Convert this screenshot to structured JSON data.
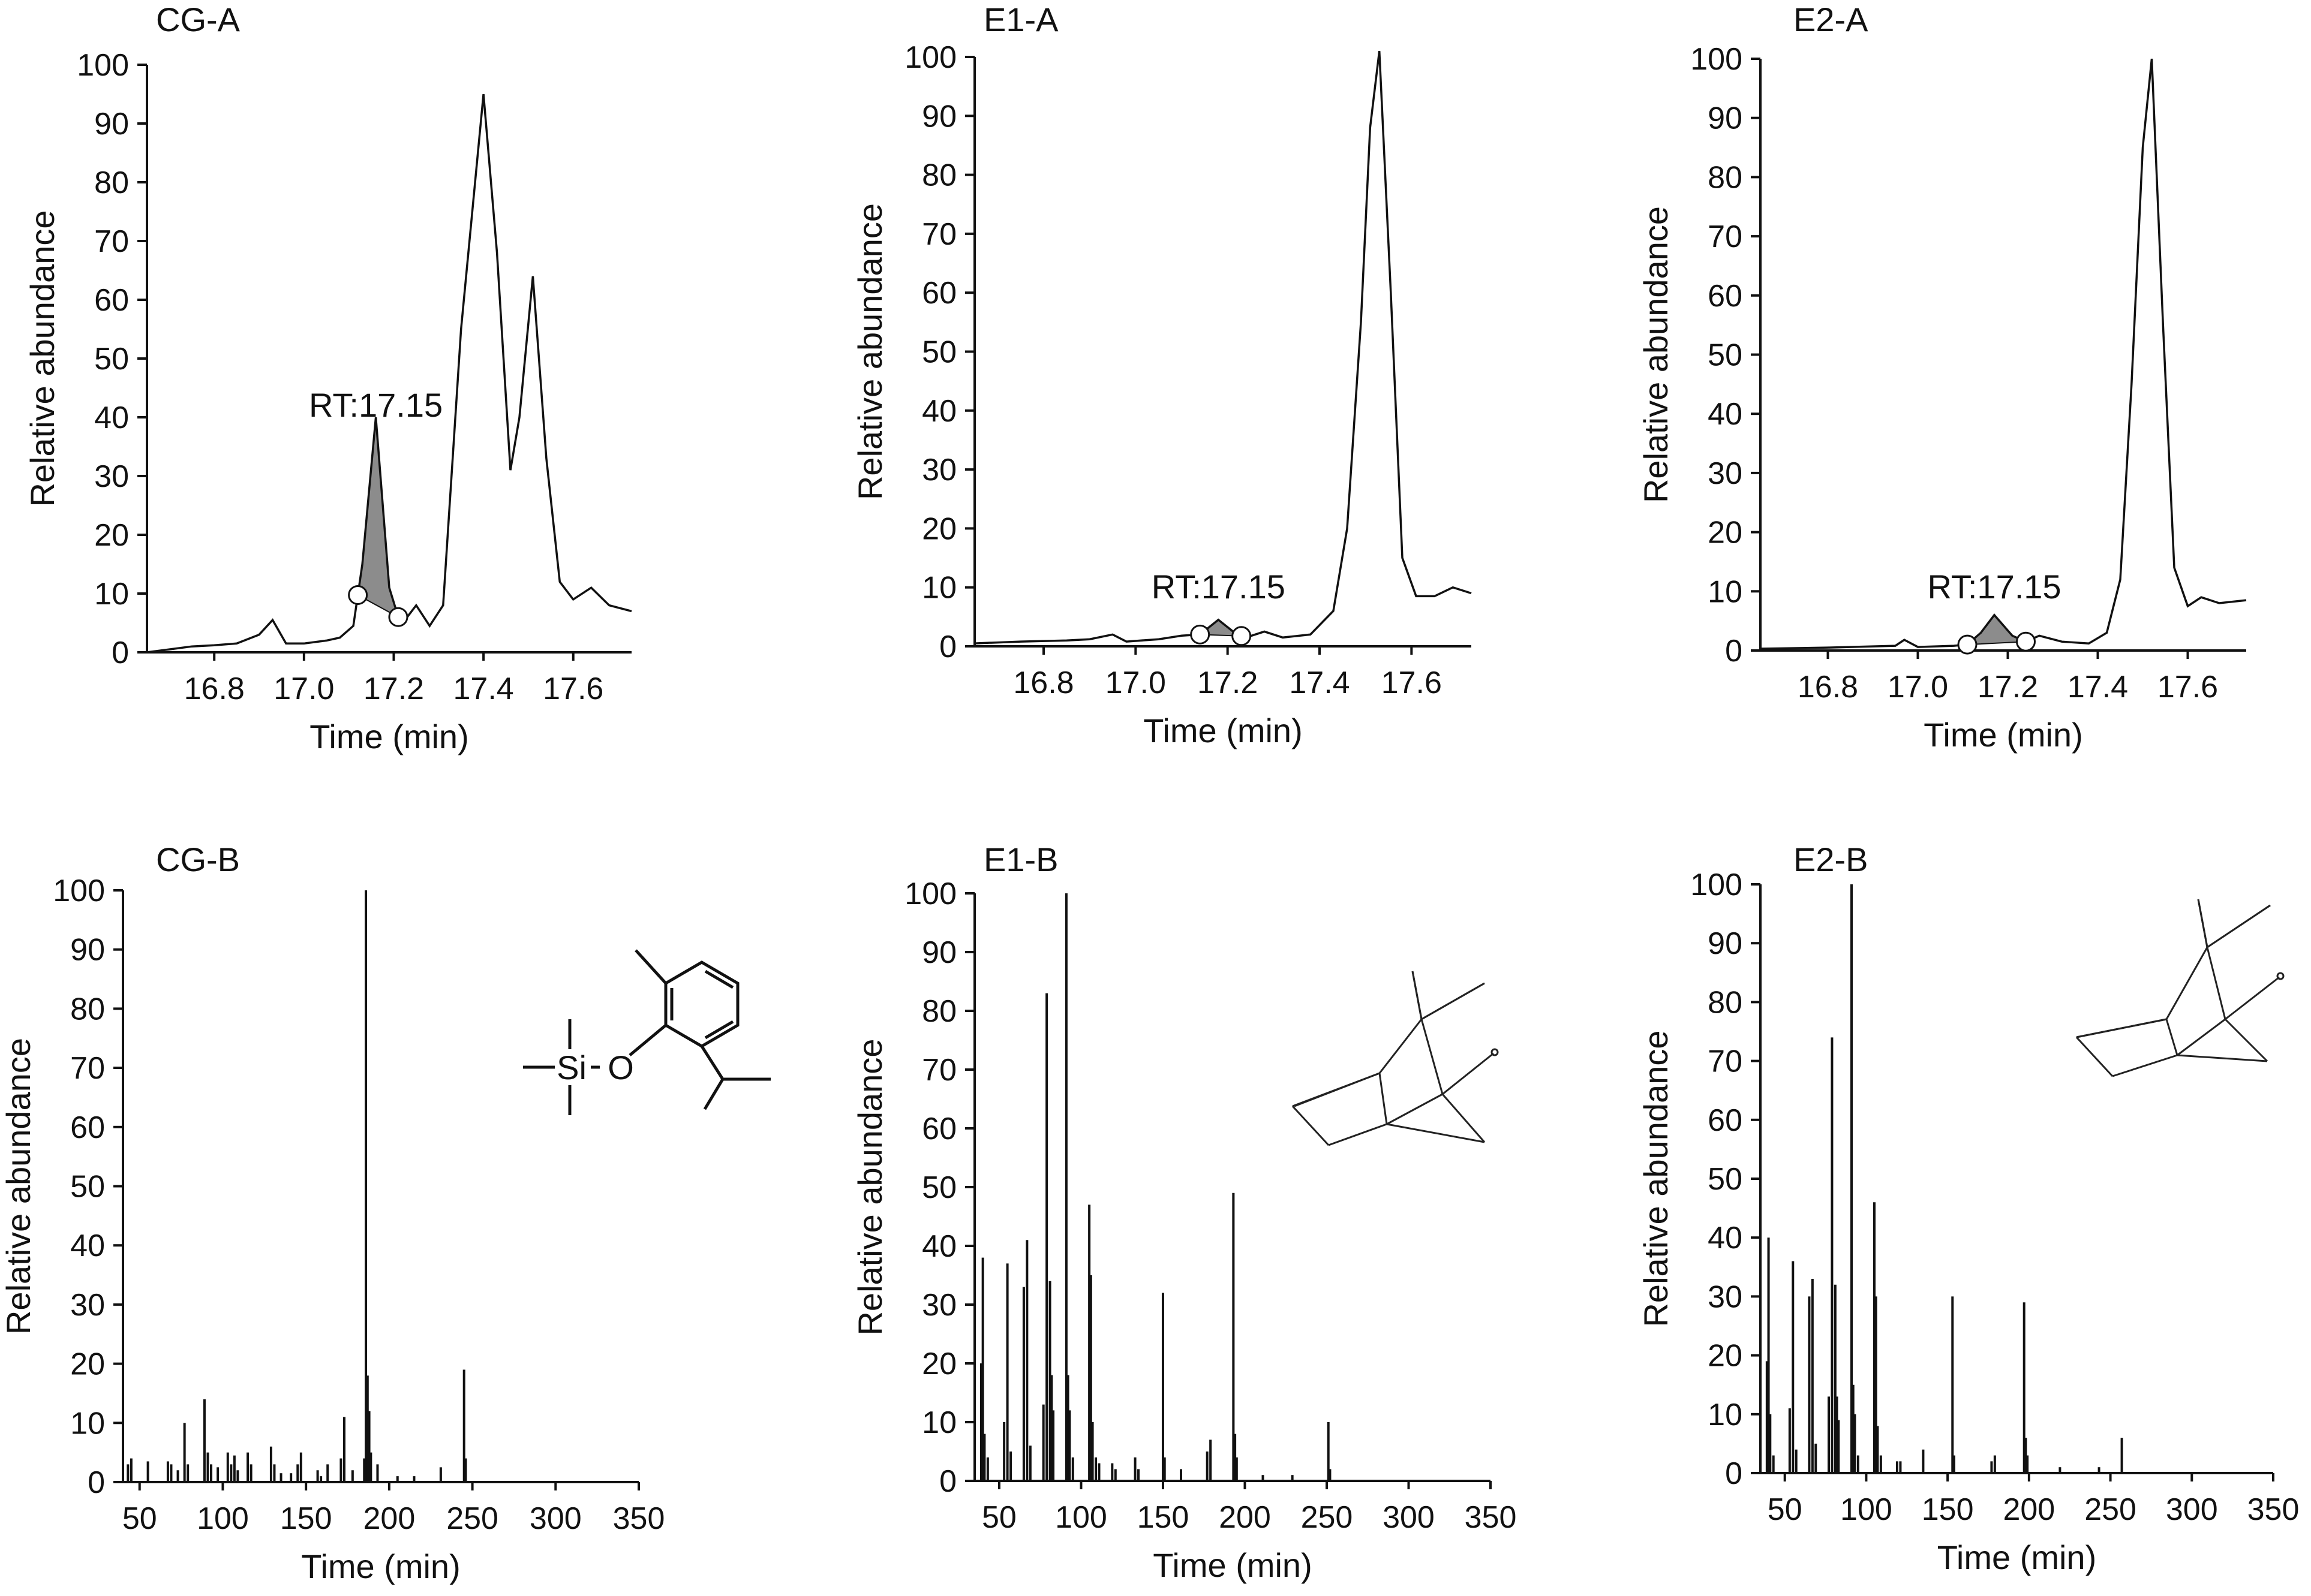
{
  "chart_data": [
    {
      "id": "CG-A",
      "type": "line",
      "title": "CG-A",
      "xlabel": "Time (min)",
      "ylabel": "Relative abundance",
      "xlim": [
        16.65,
        17.73
      ],
      "ylim": [
        0,
        100
      ],
      "xticks": [
        "16.8",
        "17.0",
        "17.2",
        "17.4",
        "17.6"
      ],
      "yticks": [
        "0",
        "10",
        "20",
        "30",
        "40",
        "50",
        "60",
        "70",
        "80",
        "90",
        "100"
      ],
      "annotation": {
        "text": "RT:17.15",
        "x": 17.16
      },
      "shaded_peak": {
        "x_start": 17.12,
        "x_end": 17.21,
        "apex": 17.16
      },
      "x": [
        16.65,
        16.7,
        16.75,
        16.8,
        16.85,
        16.9,
        16.93,
        16.96,
        17.0,
        17.05,
        17.08,
        17.11,
        17.13,
        17.16,
        17.19,
        17.21,
        17.23,
        17.25,
        17.28,
        17.31,
        17.35,
        17.4,
        17.43,
        17.46,
        17.48,
        17.51,
        17.54,
        17.57,
        17.6,
        17.64,
        17.68,
        17.73
      ],
      "y": [
        0,
        0.5,
        1,
        1.2,
        1.5,
        3,
        5.5,
        1.5,
        1.5,
        2,
        2.5,
        4.5,
        15,
        40,
        11,
        6,
        6,
        8,
        4.5,
        8,
        55,
        95,
        68,
        31,
        40,
        64,
        33,
        12,
        9,
        11,
        8,
        7
      ]
    },
    {
      "id": "E1-A",
      "type": "line",
      "title": "E1-A",
      "xlabel": "Time (min)",
      "ylabel": "Relative abundance",
      "xlim": [
        16.65,
        17.73
      ],
      "ylim": [
        0,
        100
      ],
      "xticks": [
        "16.8",
        "17.0",
        "17.2",
        "17.4",
        "17.6"
      ],
      "yticks": [
        "0",
        "10",
        "20",
        "30",
        "40",
        "50",
        "60",
        "70",
        "80",
        "90",
        "100"
      ],
      "annotation": {
        "text": "RT:17.15",
        "x": 17.18
      },
      "shaded_peak": {
        "x_start": 17.14,
        "x_end": 17.23,
        "apex": 17.18
      },
      "x": [
        16.65,
        16.75,
        16.85,
        16.9,
        16.95,
        16.98,
        17.05,
        17.1,
        17.14,
        17.18,
        17.22,
        17.24,
        17.28,
        17.32,
        17.38,
        17.43,
        17.46,
        17.49,
        17.51,
        17.53,
        17.555,
        17.58,
        17.61,
        17.65,
        17.69,
        17.73
      ],
      "y": [
        0.5,
        0.8,
        1,
        1.2,
        2,
        0.8,
        1.2,
        1.8,
        2,
        4.5,
        2,
        1.5,
        2.5,
        1.5,
        2,
        6,
        20,
        55,
        88,
        101,
        60,
        15,
        8.5,
        8.5,
        10,
        9
      ]
    },
    {
      "id": "E2-A",
      "type": "line",
      "title": "E2-A",
      "xlabel": "Time (min)",
      "ylabel": "Relative abundance",
      "xlim": [
        16.65,
        17.73
      ],
      "ylim": [
        0,
        100
      ],
      "xticks": [
        "16.8",
        "17.0",
        "17.2",
        "17.4",
        "17.6"
      ],
      "yticks": [
        "0",
        "10",
        "20",
        "30",
        "40",
        "50",
        "60",
        "70",
        "80",
        "90",
        "100"
      ],
      "annotation": {
        "text": "RT:17.15",
        "x": 17.17
      },
      "shaded_peak": {
        "x_start": 17.11,
        "x_end": 17.24,
        "apex": 17.17
      },
      "x": [
        16.65,
        16.8,
        16.95,
        16.97,
        17.0,
        17.08,
        17.11,
        17.14,
        17.17,
        17.21,
        17.24,
        17.27,
        17.32,
        17.38,
        17.42,
        17.45,
        17.475,
        17.5,
        17.52,
        17.545,
        17.57,
        17.6,
        17.63,
        17.67,
        17.73
      ],
      "y": [
        0.3,
        0.5,
        0.8,
        1.8,
        0.6,
        0.8,
        1,
        3,
        6,
        2.5,
        1.5,
        2.5,
        1.5,
        1.2,
        3,
        12,
        45,
        85,
        100,
        55,
        14,
        7.5,
        9,
        8,
        8.5
      ]
    },
    {
      "id": "CG-B",
      "type": "bar",
      "title": "CG-B",
      "xlabel": "Time (min)",
      "ylabel": "Relative abundance",
      "xlim": [
        40,
        350
      ],
      "ylim": [
        0,
        100
      ],
      "xticks": [
        "50",
        "100",
        "150",
        "200",
        "250",
        "300",
        "350"
      ],
      "yticks": [
        "0",
        "10",
        "20",
        "30",
        "40",
        "50",
        "60",
        "70",
        "80",
        "90",
        "100"
      ],
      "structure": {
        "atom_labels": [
          "Si",
          "O"
        ]
      },
      "x": [
        43,
        45,
        55,
        67,
        69,
        73,
        77,
        79,
        89,
        91,
        93,
        97,
        103,
        105,
        107,
        109,
        115,
        117,
        129,
        131,
        135,
        141,
        145,
        147,
        157,
        159,
        163,
        171,
        173,
        178,
        185,
        186,
        187,
        188,
        189,
        193,
        205,
        215,
        231,
        245,
        246
      ],
      "values": [
        3,
        4,
        3.5,
        3.5,
        3,
        2,
        10,
        3,
        14,
        5,
        3,
        2.5,
        5,
        3,
        4.5,
        2,
        5,
        3,
        6,
        3,
        1.5,
        1.5,
        3,
        5,
        2,
        1,
        3,
        4,
        11,
        2,
        4,
        100,
        18,
        12,
        5,
        3,
        1,
        1,
        2.5,
        19,
        4
      ]
    },
    {
      "id": "E1-B",
      "type": "bar",
      "title": "E1-B",
      "xlabel": "Time (min)",
      "ylabel": "Relative abundance",
      "xlim": [
        35,
        350
      ],
      "ylim": [
        0,
        100
      ],
      "xticks": [
        "50",
        "100",
        "150",
        "200",
        "250",
        "300",
        "350"
      ],
      "yticks": [
        "0",
        "10",
        "20",
        "30",
        "40",
        "50",
        "60",
        "70",
        "80",
        "90",
        "100"
      ],
      "x": [
        39,
        40,
        41,
        43,
        53,
        55,
        57,
        65,
        67,
        69,
        77,
        79,
        81,
        82,
        83,
        91,
        92,
        93,
        95,
        105,
        106,
        107,
        109,
        111,
        119,
        121,
        133,
        135,
        150,
        151,
        161,
        177,
        179,
        193,
        194,
        195,
        211,
        229,
        251,
        252
      ],
      "values": [
        20,
        38,
        8,
        4,
        10,
        37,
        5,
        33,
        41,
        6,
        13,
        83,
        34,
        18,
        12,
        100,
        18,
        12,
        4,
        47,
        35,
        10,
        4,
        3,
        3,
        2,
        4,
        2,
        32,
        4,
        2,
        5,
        7,
        49,
        8,
        4,
        1,
        1,
        10,
        2
      ]
    },
    {
      "id": "E2-B",
      "type": "bar",
      "title": "E2-B",
      "xlabel": "Time (min)",
      "ylabel": "Relative abundance",
      "xlim": [
        35,
        350
      ],
      "ylim": [
        0,
        100
      ],
      "xticks": [
        "50",
        "100",
        "150",
        "200",
        "250",
        "300",
        "350"
      ],
      "yticks": [
        "0",
        "10",
        "20",
        "30",
        "40",
        "50",
        "60",
        "70",
        "80",
        "90",
        "100"
      ],
      "x": [
        39,
        40,
        41,
        43,
        53,
        55,
        57,
        65,
        67,
        69,
        77,
        79,
        81,
        82,
        83,
        91,
        92,
        93,
        95,
        105,
        106,
        107,
        109,
        119,
        121,
        135,
        153,
        154,
        177,
        179,
        197,
        198,
        199,
        219,
        243,
        257
      ],
      "values": [
        19,
        40,
        10,
        3,
        11,
        36,
        4,
        30,
        33,
        5,
        13,
        74,
        32,
        13,
        9,
        100,
        15,
        10,
        3,
        46,
        30,
        8,
        3,
        2,
        2,
        4,
        30,
        3,
        2,
        3,
        29,
        6,
        3,
        1,
        1,
        6
      ]
    }
  ]
}
